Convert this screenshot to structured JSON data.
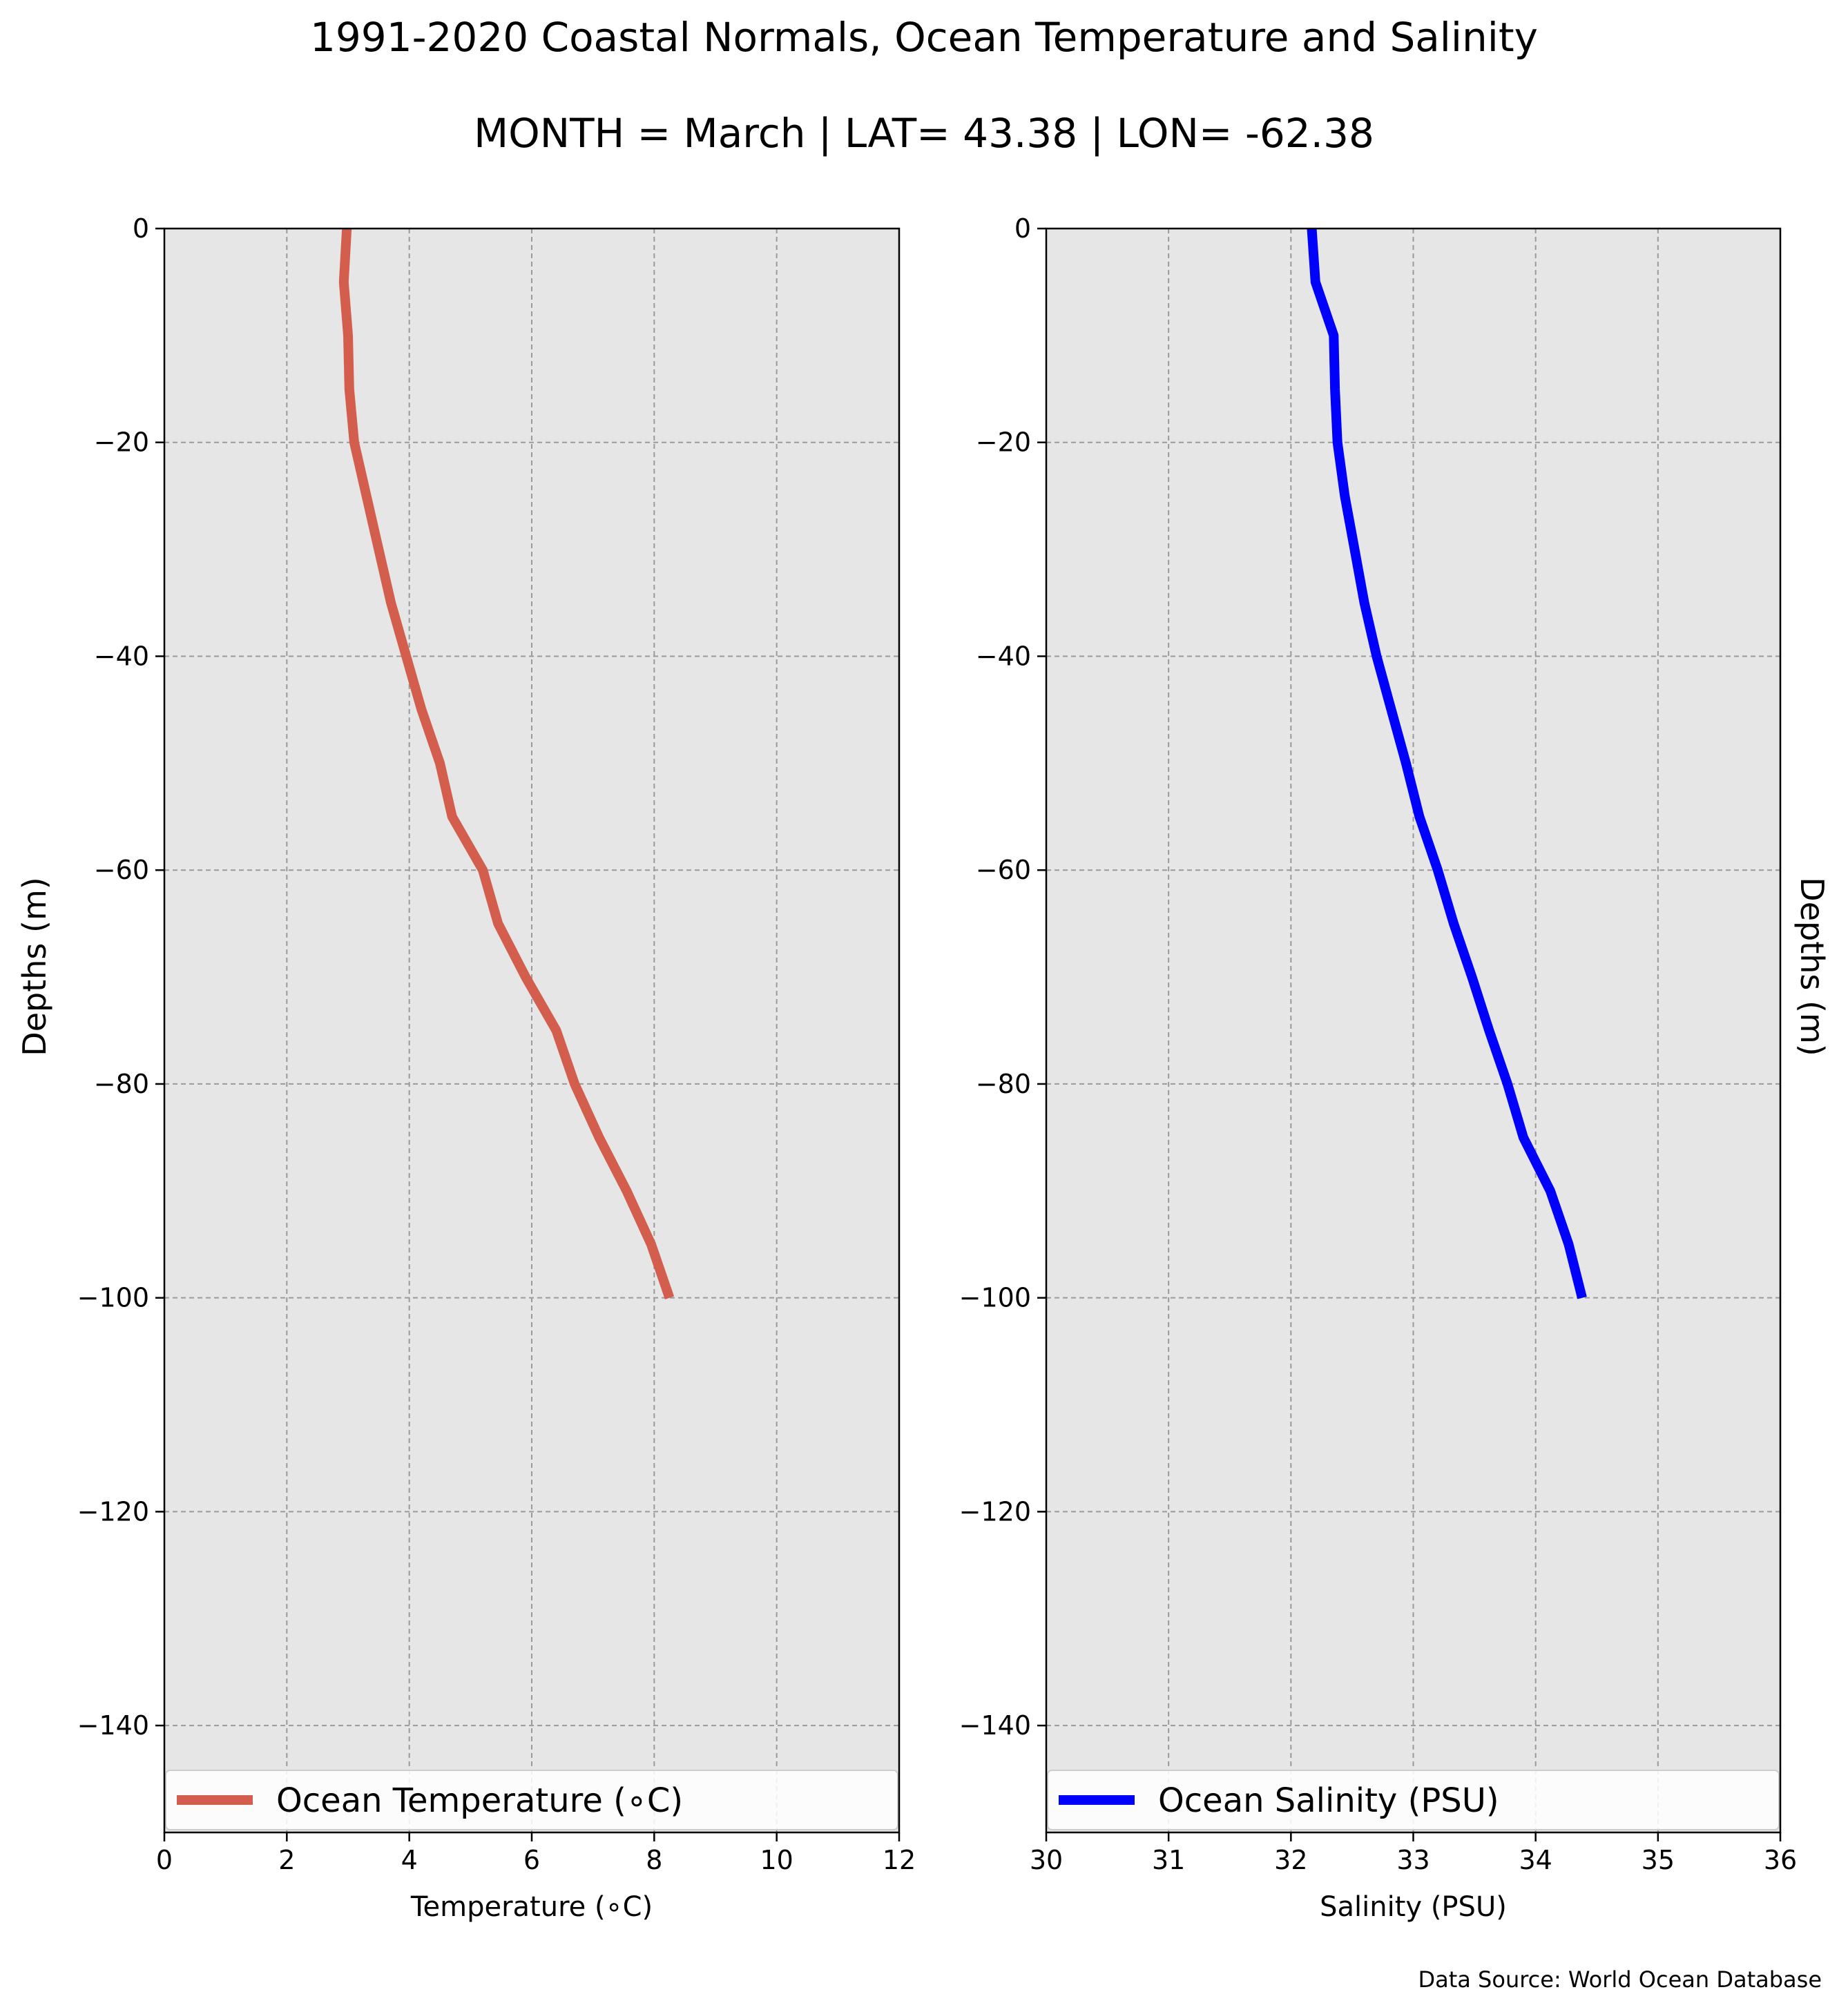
{
  "title": "1991-2020 Coastal Normals, Ocean Temperature and Salinity",
  "subtitle": "MONTH = March | LAT= 43.38 | LON= -62.38",
  "source": "Data Source: World Ocean Database",
  "left_axis_label": "Depths (m)",
  "right_axis_label": "Depths (m)",
  "colors": {
    "temperature": "#d35e4d",
    "salinity": "#0000ff",
    "plot_bg": "#e6e6e6",
    "grid": "#9a9a9a"
  },
  "chart_data": [
    {
      "type": "line",
      "xlabel": "Temperature (∘C)",
      "ylabel": "Depths (m)",
      "xlim": [
        0,
        12
      ],
      "ylim": [
        -150,
        0
      ],
      "xticks": [
        0,
        2,
        4,
        6,
        8,
        10,
        12
      ],
      "yticks": [
        0,
        -20,
        -40,
        -60,
        -80,
        -100,
        -120,
        -140
      ],
      "ytick_labels": [
        "0",
        "−20",
        "−40",
        "−60",
        "−80",
        "−100",
        "−120",
        "−140"
      ],
      "grid": true,
      "legend": "bottom",
      "series": [
        {
          "name": "Ocean Temperature (∘C)",
          "color": "#d35e4d",
          "y": [
            0,
            -5,
            -10,
            -15,
            -20,
            -25,
            -30,
            -35,
            -40,
            -45,
            -50,
            -55,
            -60,
            -65,
            -70,
            -75,
            -80,
            -85,
            -90,
            -95,
            -100
          ],
          "x": [
            2.98,
            2.93,
            3.0,
            3.02,
            3.1,
            3.3,
            3.5,
            3.7,
            3.95,
            4.2,
            4.5,
            4.7,
            5.2,
            5.45,
            5.9,
            6.4,
            6.7,
            7.1,
            7.55,
            7.95,
            8.25
          ]
        }
      ]
    },
    {
      "type": "line",
      "xlabel": "Salinity (PSU)",
      "ylabel": "Depths (m)",
      "xlim": [
        30,
        36
      ],
      "ylim": [
        -150,
        0
      ],
      "xticks": [
        30,
        31,
        32,
        33,
        34,
        35,
        36
      ],
      "yticks": [
        0,
        -20,
        -40,
        -60,
        -80,
        -100,
        -120,
        -140
      ],
      "ytick_labels": [
        "0",
        "−20",
        "−40",
        "−60",
        "−80",
        "−100",
        "−120",
        "−140"
      ],
      "grid": true,
      "legend": "bottom",
      "series": [
        {
          "name": "Ocean Salinity (PSU)",
          "color": "#0000ff",
          "y": [
            0,
            -5,
            -10,
            -15,
            -20,
            -25,
            -30,
            -35,
            -40,
            -45,
            -50,
            -55,
            -60,
            -65,
            -70,
            -75,
            -80,
            -85,
            -90,
            -95,
            -100
          ],
          "x": [
            32.17,
            32.2,
            32.35,
            32.36,
            32.38,
            32.44,
            32.52,
            32.6,
            32.7,
            32.82,
            32.94,
            33.05,
            33.2,
            33.33,
            33.48,
            33.62,
            33.77,
            33.9,
            34.12,
            34.27,
            34.38
          ]
        }
      ]
    }
  ]
}
